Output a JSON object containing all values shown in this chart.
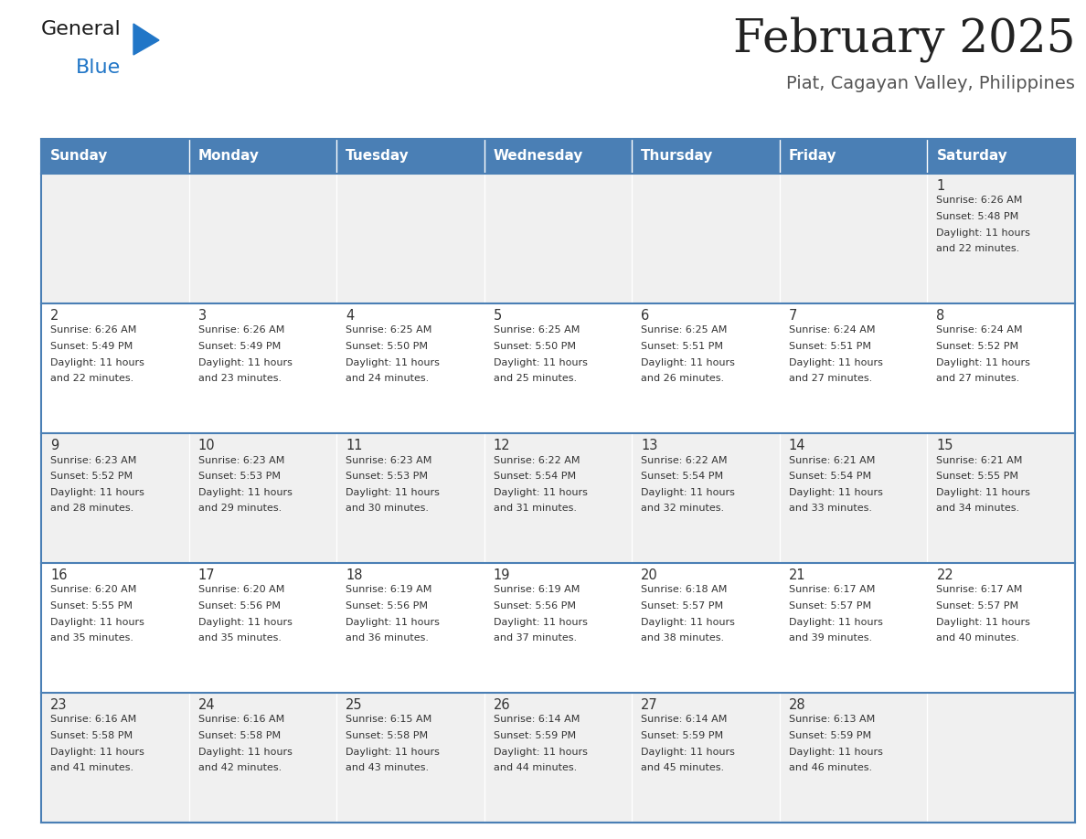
{
  "title": "February 2025",
  "subtitle": "Piat, Cagayan Valley, Philippines",
  "days_of_week": [
    "Sunday",
    "Monday",
    "Tuesday",
    "Wednesday",
    "Thursday",
    "Friday",
    "Saturday"
  ],
  "header_bg": "#4a7fb5",
  "header_text": "#ffffff",
  "row_bg_odd": "#f0f0f0",
  "row_bg_even": "#ffffff",
  "cell_border_color": "#4a7fb5",
  "day_number_color": "#333333",
  "cell_text_color": "#333333",
  "title_color": "#222222",
  "subtitle_color": "#555555",
  "calendar_data": [
    [
      null,
      null,
      null,
      null,
      null,
      null,
      {
        "day": 1,
        "sunrise": "6:26 AM",
        "sunset": "5:48 PM",
        "daylight_hours": 11,
        "daylight_minutes": 22
      }
    ],
    [
      {
        "day": 2,
        "sunrise": "6:26 AM",
        "sunset": "5:49 PM",
        "daylight_hours": 11,
        "daylight_minutes": 22
      },
      {
        "day": 3,
        "sunrise": "6:26 AM",
        "sunset": "5:49 PM",
        "daylight_hours": 11,
        "daylight_minutes": 23
      },
      {
        "day": 4,
        "sunrise": "6:25 AM",
        "sunset": "5:50 PM",
        "daylight_hours": 11,
        "daylight_minutes": 24
      },
      {
        "day": 5,
        "sunrise": "6:25 AM",
        "sunset": "5:50 PM",
        "daylight_hours": 11,
        "daylight_minutes": 25
      },
      {
        "day": 6,
        "sunrise": "6:25 AM",
        "sunset": "5:51 PM",
        "daylight_hours": 11,
        "daylight_minutes": 26
      },
      {
        "day": 7,
        "sunrise": "6:24 AM",
        "sunset": "5:51 PM",
        "daylight_hours": 11,
        "daylight_minutes": 27
      },
      {
        "day": 8,
        "sunrise": "6:24 AM",
        "sunset": "5:52 PM",
        "daylight_hours": 11,
        "daylight_minutes": 27
      }
    ],
    [
      {
        "day": 9,
        "sunrise": "6:23 AM",
        "sunset": "5:52 PM",
        "daylight_hours": 11,
        "daylight_minutes": 28
      },
      {
        "day": 10,
        "sunrise": "6:23 AM",
        "sunset": "5:53 PM",
        "daylight_hours": 11,
        "daylight_minutes": 29
      },
      {
        "day": 11,
        "sunrise": "6:23 AM",
        "sunset": "5:53 PM",
        "daylight_hours": 11,
        "daylight_minutes": 30
      },
      {
        "day": 12,
        "sunrise": "6:22 AM",
        "sunset": "5:54 PM",
        "daylight_hours": 11,
        "daylight_minutes": 31
      },
      {
        "day": 13,
        "sunrise": "6:22 AM",
        "sunset": "5:54 PM",
        "daylight_hours": 11,
        "daylight_minutes": 32
      },
      {
        "day": 14,
        "sunrise": "6:21 AM",
        "sunset": "5:54 PM",
        "daylight_hours": 11,
        "daylight_minutes": 33
      },
      {
        "day": 15,
        "sunrise": "6:21 AM",
        "sunset": "5:55 PM",
        "daylight_hours": 11,
        "daylight_minutes": 34
      }
    ],
    [
      {
        "day": 16,
        "sunrise": "6:20 AM",
        "sunset": "5:55 PM",
        "daylight_hours": 11,
        "daylight_minutes": 35
      },
      {
        "day": 17,
        "sunrise": "6:20 AM",
        "sunset": "5:56 PM",
        "daylight_hours": 11,
        "daylight_minutes": 35
      },
      {
        "day": 18,
        "sunrise": "6:19 AM",
        "sunset": "5:56 PM",
        "daylight_hours": 11,
        "daylight_minutes": 36
      },
      {
        "day": 19,
        "sunrise": "6:19 AM",
        "sunset": "5:56 PM",
        "daylight_hours": 11,
        "daylight_minutes": 37
      },
      {
        "day": 20,
        "sunrise": "6:18 AM",
        "sunset": "5:57 PM",
        "daylight_hours": 11,
        "daylight_minutes": 38
      },
      {
        "day": 21,
        "sunrise": "6:17 AM",
        "sunset": "5:57 PM",
        "daylight_hours": 11,
        "daylight_minutes": 39
      },
      {
        "day": 22,
        "sunrise": "6:17 AM",
        "sunset": "5:57 PM",
        "daylight_hours": 11,
        "daylight_minutes": 40
      }
    ],
    [
      {
        "day": 23,
        "sunrise": "6:16 AM",
        "sunset": "5:58 PM",
        "daylight_hours": 11,
        "daylight_minutes": 41
      },
      {
        "day": 24,
        "sunrise": "6:16 AM",
        "sunset": "5:58 PM",
        "daylight_hours": 11,
        "daylight_minutes": 42
      },
      {
        "day": 25,
        "sunrise": "6:15 AM",
        "sunset": "5:58 PM",
        "daylight_hours": 11,
        "daylight_minutes": 43
      },
      {
        "day": 26,
        "sunrise": "6:14 AM",
        "sunset": "5:59 PM",
        "daylight_hours": 11,
        "daylight_minutes": 44
      },
      {
        "day": 27,
        "sunrise": "6:14 AM",
        "sunset": "5:59 PM",
        "daylight_hours": 11,
        "daylight_minutes": 45
      },
      {
        "day": 28,
        "sunrise": "6:13 AM",
        "sunset": "5:59 PM",
        "daylight_hours": 11,
        "daylight_minutes": 46
      },
      null
    ]
  ]
}
